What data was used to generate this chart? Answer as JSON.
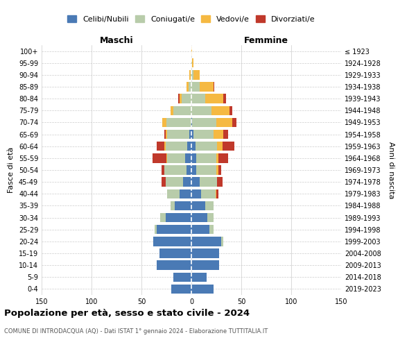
{
  "age_groups": [
    "0-4",
    "5-9",
    "10-14",
    "15-19",
    "20-24",
    "25-29",
    "30-34",
    "35-39",
    "40-44",
    "45-49",
    "50-54",
    "55-59",
    "60-64",
    "65-69",
    "70-74",
    "75-79",
    "80-84",
    "85-89",
    "90-94",
    "95-99",
    "100+"
  ],
  "birth_years": [
    "2019-2023",
    "2014-2018",
    "2009-2013",
    "2004-2008",
    "1999-2003",
    "1994-1998",
    "1989-1993",
    "1984-1988",
    "1979-1983",
    "1974-1978",
    "1969-1973",
    "1964-1968",
    "1959-1963",
    "1954-1958",
    "1949-1953",
    "1944-1948",
    "1939-1943",
    "1934-1938",
    "1929-1933",
    "1924-1928",
    "≤ 1923"
  ],
  "male": {
    "celibi": [
      20,
      18,
      35,
      32,
      38,
      35,
      26,
      17,
      12,
      8,
      5,
      6,
      4,
      2,
      0,
      0,
      0,
      0,
      0,
      0,
      0
    ],
    "coniugati": [
      0,
      0,
      0,
      0,
      0,
      2,
      5,
      4,
      12,
      18,
      22,
      18,
      22,
      22,
      25,
      18,
      10,
      3,
      1,
      0,
      0
    ],
    "vedovi": [
      0,
      0,
      0,
      0,
      0,
      0,
      0,
      0,
      0,
      0,
      0,
      1,
      1,
      2,
      4,
      3,
      2,
      2,
      1,
      0,
      0
    ],
    "divorziati": [
      0,
      0,
      0,
      0,
      0,
      0,
      0,
      0,
      0,
      4,
      3,
      14,
      8,
      1,
      0,
      0,
      1,
      0,
      0,
      0,
      0
    ]
  },
  "female": {
    "nubili": [
      22,
      15,
      28,
      28,
      30,
      18,
      16,
      14,
      10,
      8,
      5,
      5,
      4,
      2,
      1,
      0,
      0,
      0,
      0,
      0,
      0
    ],
    "coniugate": [
      0,
      0,
      0,
      0,
      2,
      4,
      6,
      8,
      14,
      18,
      20,
      20,
      22,
      20,
      24,
      20,
      14,
      8,
      2,
      1,
      0
    ],
    "vedove": [
      0,
      0,
      0,
      0,
      0,
      0,
      0,
      0,
      1,
      0,
      2,
      2,
      5,
      10,
      16,
      18,
      18,
      14,
      6,
      1,
      1
    ],
    "divorziate": [
      0,
      0,
      0,
      0,
      0,
      0,
      0,
      0,
      2,
      5,
      3,
      10,
      12,
      5,
      4,
      3,
      3,
      1,
      0,
      0,
      0
    ]
  },
  "colors": {
    "celibi": "#4a7ab5",
    "coniugati": "#b8ccaa",
    "vedovi": "#f5b942",
    "divorziati": "#c0392b"
  },
  "xlim": 150,
  "title": "Popolazione per età, sesso e stato civile - 2024",
  "subtitle": "COMUNE DI INTRODACQUA (AQ) - Dati ISTAT 1° gennaio 2024 - Elaborazione TUTTITALIA.IT",
  "xlabel_left": "Maschi",
  "xlabel_right": "Femmine",
  "ylabel_left": "Fasce di età",
  "ylabel_right": "Anni di nascita",
  "legend_labels": [
    "Celibi/Nubili",
    "Coniugati/e",
    "Vedovi/e",
    "Divorziati/e"
  ],
  "background_color": "#ffffff"
}
